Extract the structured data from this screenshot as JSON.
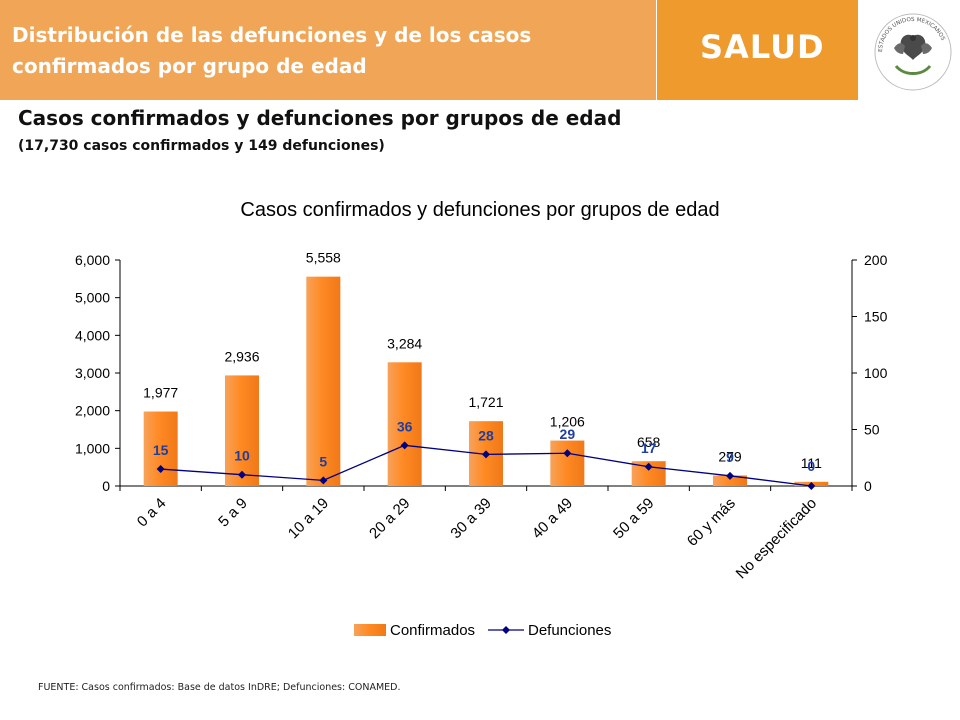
{
  "header": {
    "title": "Distribución de las defunciones y de los  casos confirmados por grupo de edad",
    "brand": "SALUD",
    "seal_text": "ESTADOS UNIDOS MEXICANOS"
  },
  "slide": {
    "subtitle": "Casos confirmados y defunciones por grupos de edad",
    "note": "(17,730 casos confirmados y 149 defunciones)"
  },
  "chart_data": {
    "type": "bar",
    "title": "Casos confirmados y defunciones por grupos de edad",
    "categories": [
      "0 a 4",
      "5 a 9",
      "10 a 19",
      "20 a 29",
      "30 a 39",
      "40 a 49",
      "50 a 59",
      "60 y más",
      "No especificado"
    ],
    "series": [
      {
        "name": "Confirmados",
        "type": "bar",
        "axis": "left",
        "values": [
          1977,
          2936,
          5558,
          3284,
          1721,
          1206,
          658,
          279,
          111
        ],
        "labels": [
          "1,977",
          "2,936",
          "5,558",
          "3,284",
          "1,721",
          "1,206",
          "658",
          "279",
          "111"
        ],
        "color": "#f07818"
      },
      {
        "name": "Defunciones",
        "type": "line",
        "axis": "right",
        "values": [
          15,
          10,
          5,
          36,
          28,
          29,
          17,
          9,
          0
        ],
        "labels": [
          "15",
          "10",
          "5",
          "36",
          "28",
          "29",
          "17",
          "9",
          "0"
        ],
        "color": "#000080"
      }
    ],
    "y_left": {
      "min": 0,
      "max": 6000,
      "ticks": [
        0,
        1000,
        2000,
        3000,
        4000,
        5000,
        6000
      ],
      "tick_labels": [
        "0",
        "1,000",
        "2,000",
        "3,000",
        "4,000",
        "5,000",
        "6,000"
      ]
    },
    "y_right": {
      "min": 0,
      "max": 200,
      "ticks": [
        0,
        50,
        100,
        150,
        200
      ],
      "tick_labels": [
        "0",
        "50",
        "100",
        "150",
        "200"
      ]
    },
    "grid": false,
    "legend": "bottom"
  },
  "footnote": "FUENTE:  Casos confirmados: Base de datos InDRE; Defunciones: CONAMED."
}
